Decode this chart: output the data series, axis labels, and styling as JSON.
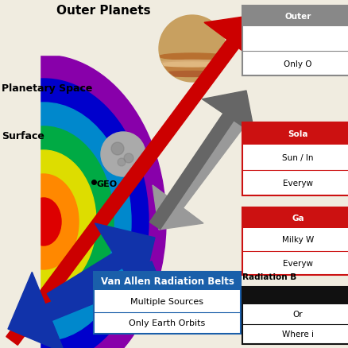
{
  "background_color": "#f0ece0",
  "title_outer_planets": "Outer Planets",
  "label_planetary_space": "Planetary Space",
  "label_surface": "Surface",
  "label_geo": "GEO",
  "van_allen_box": {
    "title": "Van Allen Radiation Belts",
    "title_bg": "#1a5faa",
    "title_color": "white",
    "row1": "Multiple Sources",
    "row2": "Only Earth Orbits",
    "bg": "#ffffff",
    "border": "#1a5faa"
  },
  "outer_planets_box": {
    "title": "Outer",
    "title_bg": "#888888",
    "title_color": "white",
    "row1": "",
    "row2": "Only O",
    "bg": "#ffffff",
    "border": "#888888"
  },
  "solar_box": {
    "title": "Sola",
    "title_bg": "#cc1111",
    "title_color": "white",
    "row1": "Sun / In",
    "row2": "Everyw",
    "bg": "#ffffff",
    "border": "#cc1111"
  },
  "galactic_box": {
    "title": "Ga",
    "title_bg": "#cc1111",
    "title_color": "white",
    "row1": "Milky W",
    "row2": "Everyw",
    "bg": "#ffffff",
    "border": "#cc1111"
  },
  "radiation_label": "Radiation B",
  "black_box": {
    "title_bg": "#111111",
    "title_color": "white",
    "row1": "Or",
    "row2": "Where i",
    "bg": "#ffffff",
    "border": "#111111"
  },
  "rainbow_colors": [
    "#8800aa",
    "#0000cc",
    "#0088cc",
    "#00aa44",
    "#dddd00",
    "#ff8800",
    "#dd0000"
  ],
  "arrow_red_color": "#cc0000",
  "arrow_blue_color": "#1133aa",
  "arrow_gray_color": "#666666"
}
